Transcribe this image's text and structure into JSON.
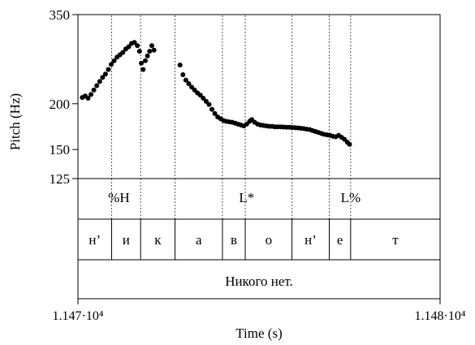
{
  "chart_data": {
    "type": "scatter",
    "title": "",
    "ylabel": "Pitch (Hz)",
    "xlabel": "Time (s)",
    "yscale": "log",
    "ylim": [
      125,
      350
    ],
    "yticks": [
      {
        "value": 350,
        "label": "350"
      },
      {
        "value": 200,
        "label": "200"
      },
      {
        "value": 150,
        "label": "150"
      },
      {
        "value": 125,
        "label": "125"
      }
    ],
    "xlim": [
      0,
      1
    ],
    "xtick_labels": {
      "start": "1.147·10⁴",
      "end": "1.148·10⁴"
    },
    "boundaries": [
      0.093,
      0.173,
      0.268,
      0.399,
      0.462,
      0.591,
      0.694,
      0.753
    ],
    "tones": [
      {
        "label": "%H",
        "t": 0.113
      },
      {
        "label": "L*",
        "t": 0.466
      },
      {
        "label": "L%",
        "t": 0.753
      }
    ],
    "segments": [
      "н’",
      "и",
      "к",
      "а",
      "в",
      "о",
      "н’",
      "е",
      "т"
    ],
    "phrase": "Никого нет.",
    "pitch_contour": [
      [
        0.012,
        208
      ],
      [
        0.02,
        210
      ],
      [
        0.028,
        207
      ],
      [
        0.036,
        212
      ],
      [
        0.044,
        218
      ],
      [
        0.052,
        224
      ],
      [
        0.06,
        230
      ],
      [
        0.068,
        236
      ],
      [
        0.076,
        241
      ],
      [
        0.084,
        248
      ],
      [
        0.092,
        256
      ],
      [
        0.1,
        262
      ],
      [
        0.108,
        268
      ],
      [
        0.116,
        272
      ],
      [
        0.124,
        276
      ],
      [
        0.132,
        282
      ],
      [
        0.14,
        286
      ],
      [
        0.148,
        292
      ],
      [
        0.156,
        294
      ],
      [
        0.164,
        288
      ],
      [
        0.17,
        278
      ],
      [
        0.175,
        258
      ],
      [
        0.18,
        248
      ],
      [
        0.186,
        262
      ],
      [
        0.192,
        270
      ],
      [
        0.198,
        278
      ],
      [
        0.204,
        288
      ],
      [
        0.21,
        280
      ],
      [
        0.282,
        255
      ],
      [
        0.29,
        240
      ],
      [
        0.298,
        232
      ],
      [
        0.306,
        227
      ],
      [
        0.314,
        222
      ],
      [
        0.322,
        218
      ],
      [
        0.33,
        214
      ],
      [
        0.338,
        211
      ],
      [
        0.346,
        207
      ],
      [
        0.354,
        203
      ],
      [
        0.362,
        199
      ],
      [
        0.37,
        193
      ],
      [
        0.378,
        188
      ],
      [
        0.386,
        184
      ],
      [
        0.394,
        182
      ],
      [
        0.402,
        180
      ],
      [
        0.41,
        179
      ],
      [
        0.418,
        178.5
      ],
      [
        0.426,
        178
      ],
      [
        0.434,
        177
      ],
      [
        0.442,
        176
      ],
      [
        0.45,
        175
      ],
      [
        0.458,
        174
      ],
      [
        0.466,
        176
      ],
      [
        0.474,
        179
      ],
      [
        0.48,
        181
      ],
      [
        0.488,
        178
      ],
      [
        0.496,
        176
      ],
      [
        0.504,
        175
      ],
      [
        0.512,
        174.5
      ],
      [
        0.52,
        174
      ],
      [
        0.528,
        173.5
      ],
      [
        0.536,
        173.5
      ],
      [
        0.544,
        173
      ],
      [
        0.552,
        173
      ],
      [
        0.56,
        173
      ],
      [
        0.568,
        172.8
      ],
      [
        0.576,
        172.6
      ],
      [
        0.584,
        172.5
      ],
      [
        0.592,
        172.3
      ],
      [
        0.6,
        172
      ],
      [
        0.608,
        171.8
      ],
      [
        0.616,
        171.5
      ],
      [
        0.624,
        171
      ],
      [
        0.632,
        170.5
      ],
      [
        0.64,
        170
      ],
      [
        0.648,
        169
      ],
      [
        0.656,
        168
      ],
      [
        0.664,
        167
      ],
      [
        0.672,
        166
      ],
      [
        0.68,
        165
      ],
      [
        0.688,
        164.5
      ],
      [
        0.696,
        164
      ],
      [
        0.704,
        163
      ],
      [
        0.712,
        162.5
      ],
      [
        0.72,
        164
      ],
      [
        0.728,
        162
      ],
      [
        0.736,
        160
      ],
      [
        0.744,
        157
      ],
      [
        0.75,
        155
      ]
    ]
  }
}
